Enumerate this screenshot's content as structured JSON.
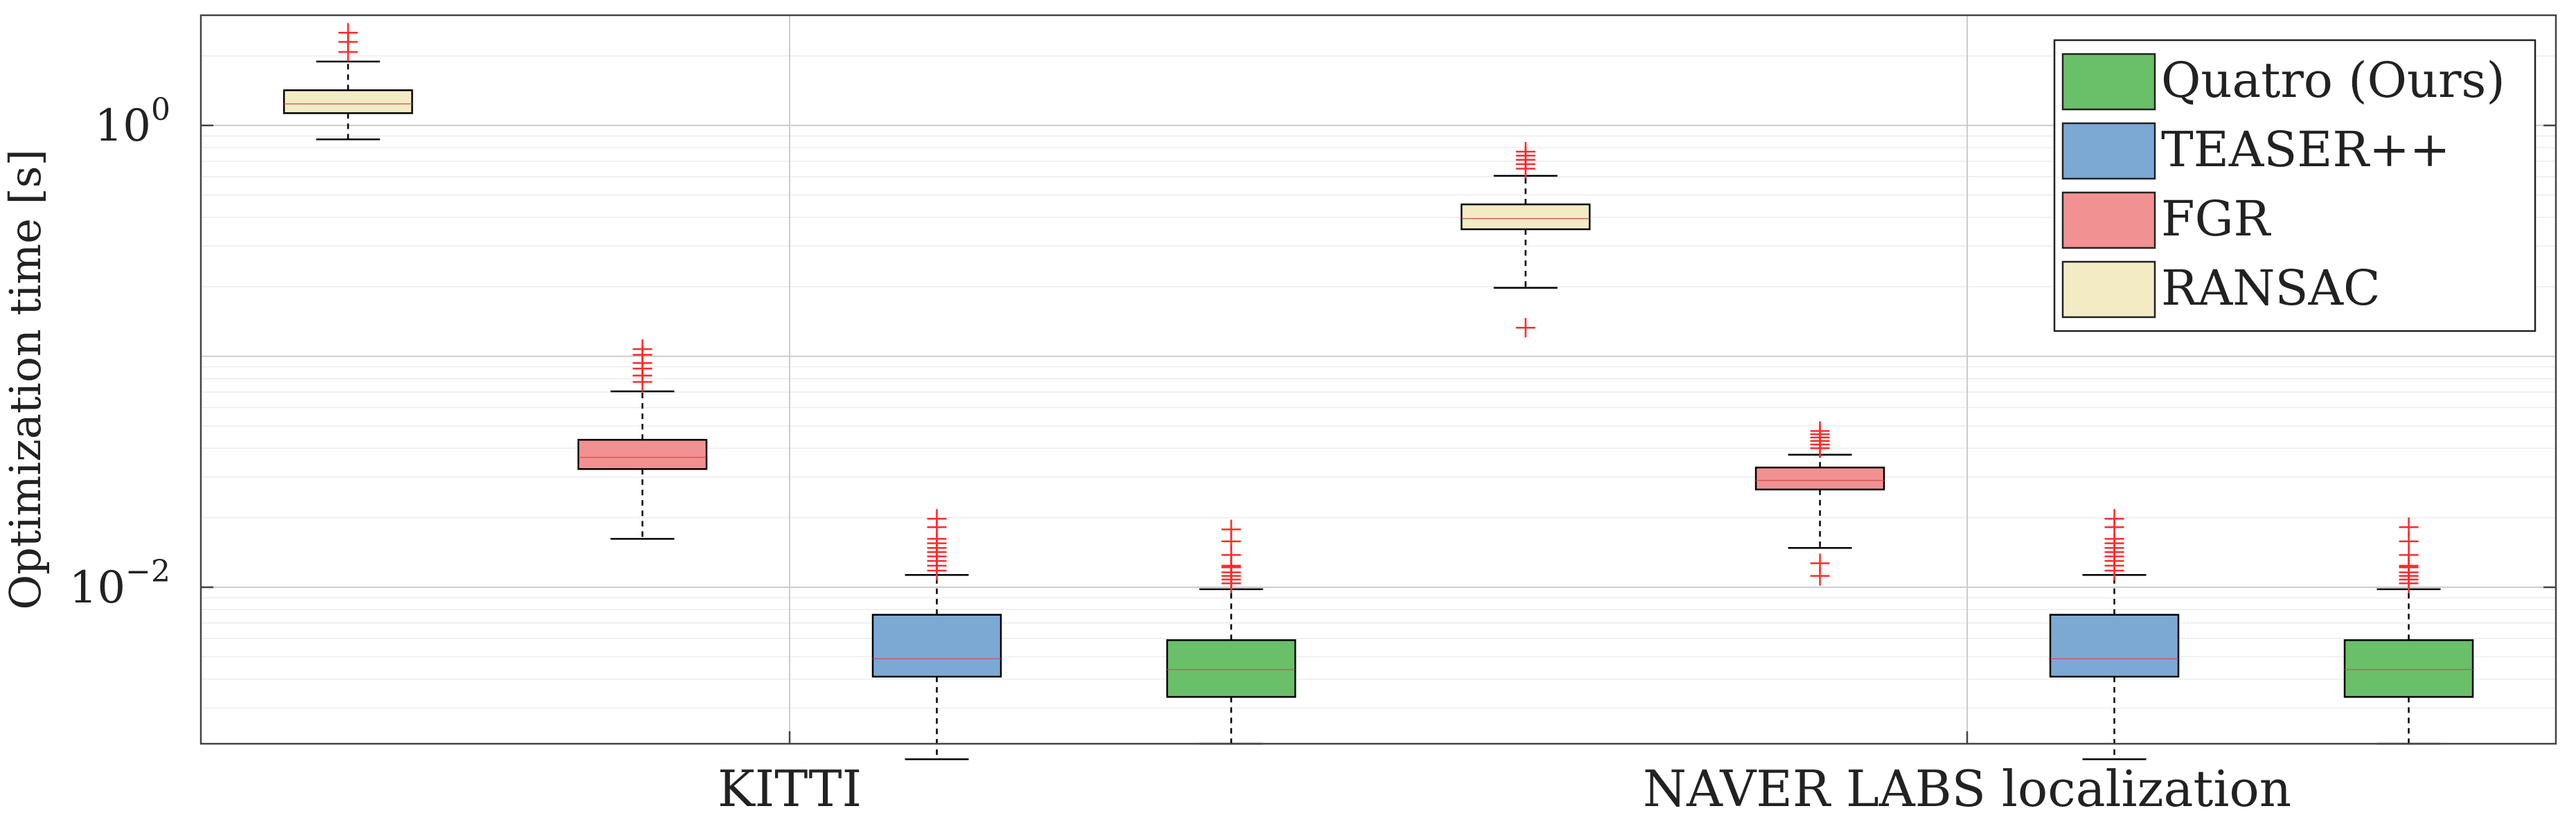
{
  "chart_data": {
    "type": "box",
    "title": "",
    "xlabel": "",
    "ylabel": "Optimization time [s]",
    "yscale": "log",
    "ylim": [
      0.0021,
      3.0
    ],
    "yticks": [
      {
        "value": 1,
        "label": "10",
        "exp": "0"
      },
      {
        "value": 0.01,
        "label": "10",
        "exp": "−2"
      }
    ],
    "grid": true,
    "legend_position": "top-right",
    "categories": [
      "KITTI",
      "NAVER LABS localization"
    ],
    "series": [
      {
        "name": "Quatro (Ours)",
        "color": "#6abf69",
        "boxes": [
          {
            "category": "KITTI",
            "q1": 0.00335,
            "median": 0.0044,
            "q3": 0.0059,
            "whisker_low": 0.0021,
            "whisker_high": 0.0098,
            "outliers": [
              0.0104,
              0.0108,
              0.0112,
              0.0116,
              0.0122,
              0.0124,
              0.0138,
              0.0158,
              0.0178
            ]
          },
          {
            "category": "NAVER LABS localization",
            "q1": 0.00335,
            "median": 0.0044,
            "q3": 0.0059,
            "whisker_low": 0.0021,
            "whisker_high": 0.0098,
            "outliers": [
              0.0104,
              0.0108,
              0.0112,
              0.0116,
              0.0122,
              0.0124,
              0.0138,
              0.0158,
              0.0182
            ]
          }
        ]
      },
      {
        "name": "TEASER++",
        "color": "#7ba9d4",
        "boxes": [
          {
            "category": "KITTI",
            "q1": 0.0041,
            "median": 0.0049,
            "q3": 0.0076,
            "whisker_low": 0.0018,
            "whisker_high": 0.0113,
            "outliers": [
              0.0118,
              0.0124,
              0.013,
              0.0136,
              0.0142,
              0.0148,
              0.0155,
              0.0162,
              0.0182,
              0.0198
            ]
          },
          {
            "category": "NAVER LABS localization",
            "q1": 0.0041,
            "median": 0.0049,
            "q3": 0.0076,
            "whisker_low": 0.0018,
            "whisker_high": 0.0113,
            "outliers": [
              0.0118,
              0.0124,
              0.013,
              0.0136,
              0.0142,
              0.0148,
              0.0155,
              0.0162,
              0.0182,
              0.0198
            ]
          }
        ]
      },
      {
        "name": "FGR",
        "color": "#f29191",
        "boxes": [
          {
            "category": "KITTI",
            "q1": 0.0325,
            "median": 0.0365,
            "q3": 0.0435,
            "whisker_low": 0.0162,
            "whisker_high": 0.0705,
            "outliers": [
              0.0775,
              0.0825,
              0.0885,
              0.0935,
              0.1015,
              0.1075
            ]
          },
          {
            "category": "NAVER LABS localization",
            "q1": 0.0265,
            "median": 0.029,
            "q3": 0.033,
            "whisker_low": 0.0148,
            "whisker_high": 0.0375,
            "outliers": [
              0.04,
              0.0415,
              0.043,
              0.0445,
              0.046,
              0.0475,
              0.0112,
              0.0127
            ]
          }
        ]
      },
      {
        "name": "RANSAC",
        "color": "#f2ebc4",
        "boxes": [
          {
            "category": "KITTI",
            "q1": 1.13,
            "median": 1.24,
            "q3": 1.42,
            "whisker_low": 0.87,
            "whisker_high": 1.89,
            "outliers": [
              2.08,
              2.3,
              2.52
            ]
          },
          {
            "category": "NAVER LABS localization",
            "q1": 0.355,
            "median": 0.395,
            "q3": 0.455,
            "whisker_low": 0.198,
            "whisker_high": 0.605,
            "outliers": [
              0.65,
              0.68,
              0.71,
              0.74,
              0.77,
              0.133
            ]
          }
        ]
      }
    ],
    "draw_order": [
      "RANSAC",
      "FGR",
      "TEASER++",
      "Quatro (Ours)"
    ]
  }
}
